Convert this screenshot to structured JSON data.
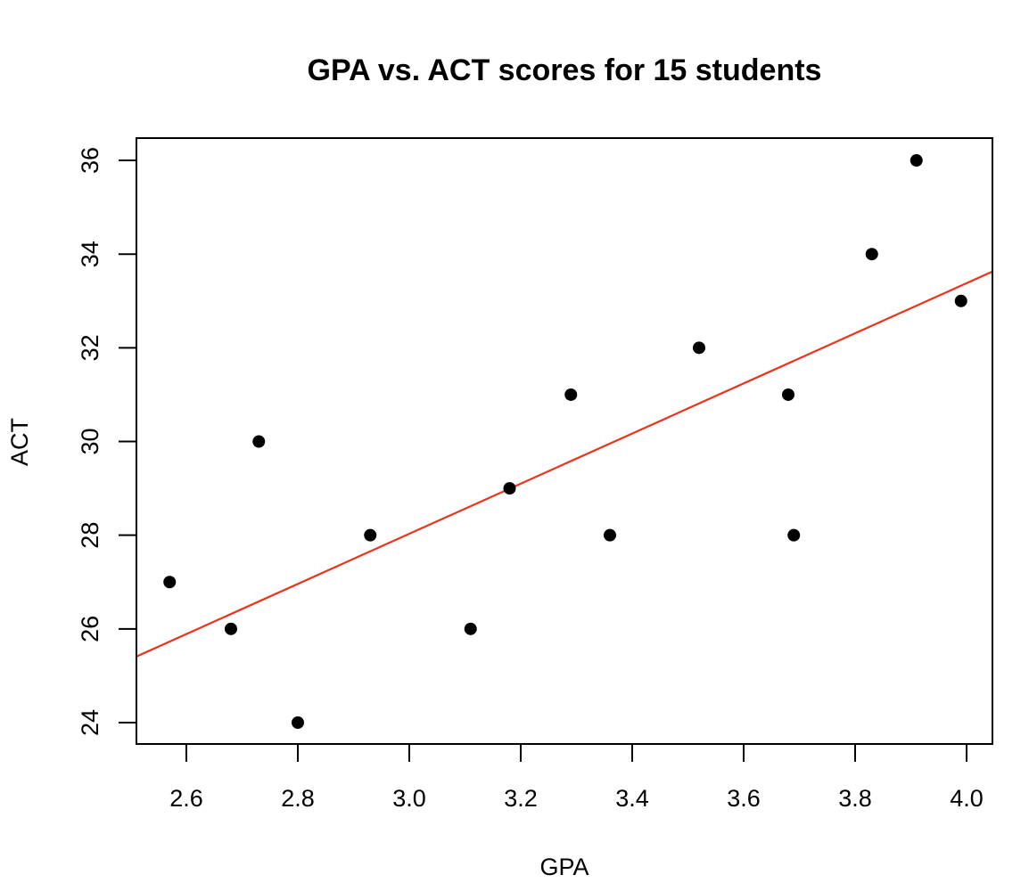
{
  "chart_data": {
    "type": "scatter",
    "title": "GPA vs. ACT scores for 15 students",
    "xlabel": "GPA",
    "ylabel": "ACT",
    "xlim": [
      2.51,
      4.046
    ],
    "ylim": [
      23.52,
      36.47
    ],
    "x_ticks": [
      2.6,
      2.8,
      3.0,
      3.2,
      3.4,
      3.6,
      3.8,
      4.0
    ],
    "x_tick_labels": [
      "2.6",
      "2.8",
      "3.0",
      "3.2",
      "3.4",
      "3.6",
      "3.8",
      "4.0"
    ],
    "y_ticks": [
      24,
      26,
      28,
      30,
      32,
      34,
      36
    ],
    "y_tick_labels": [
      "24",
      "26",
      "28",
      "30",
      "32",
      "34",
      "36"
    ],
    "grid": false,
    "legend": null,
    "series": [
      {
        "name": "students",
        "type": "scatter",
        "color": "#000000",
        "points": [
          {
            "x": 2.57,
            "y": 27
          },
          {
            "x": 2.68,
            "y": 26
          },
          {
            "x": 2.73,
            "y": 30
          },
          {
            "x": 2.8,
            "y": 24
          },
          {
            "x": 2.93,
            "y": 28
          },
          {
            "x": 3.11,
            "y": 26
          },
          {
            "x": 3.18,
            "y": 29
          },
          {
            "x": 3.29,
            "y": 31
          },
          {
            "x": 3.36,
            "y": 28
          },
          {
            "x": 3.52,
            "y": 32
          },
          {
            "x": 3.68,
            "y": 31
          },
          {
            "x": 3.69,
            "y": 28
          },
          {
            "x": 3.83,
            "y": 34
          },
          {
            "x": 3.91,
            "y": 36
          },
          {
            "x": 3.99,
            "y": 33
          }
        ]
      },
      {
        "name": "regression line",
        "type": "line",
        "color": "#e8341c",
        "intercept": 11.98,
        "slope": 5.35
      }
    ]
  }
}
